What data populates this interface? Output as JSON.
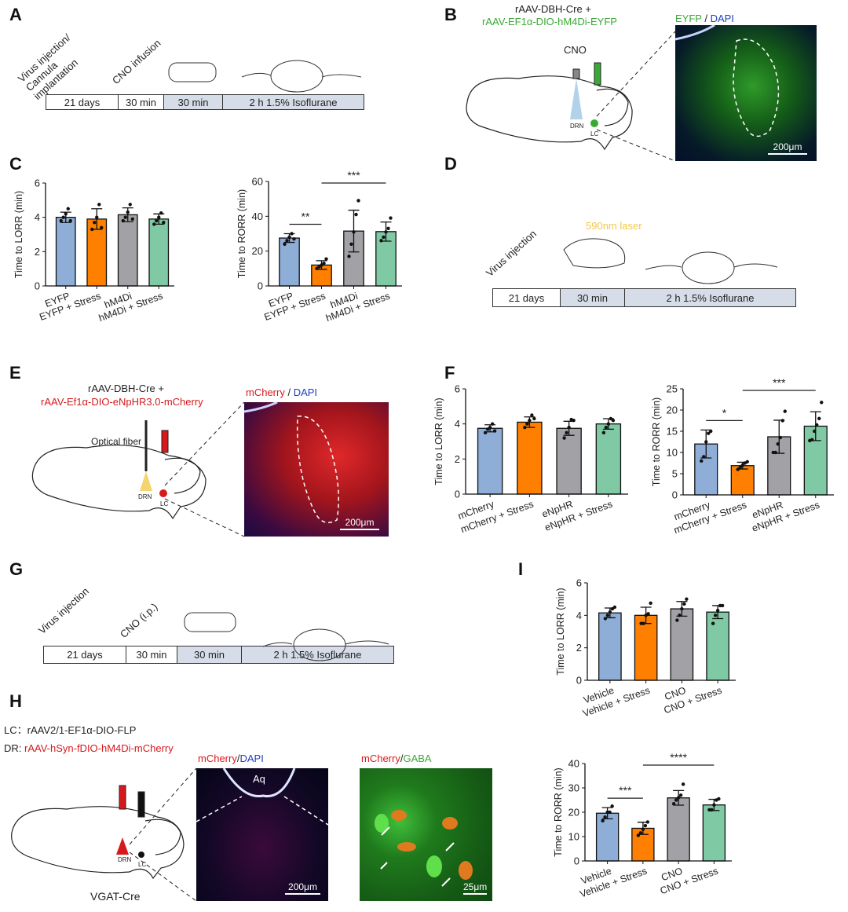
{
  "panels": {
    "A": {
      "letter": "A",
      "labels": [
        "Virus injection/ Cannula implantation",
        "CNO infusion"
      ],
      "timeline": [
        "21 days",
        "30 min",
        "30 min",
        "2 h 1.5% Isoflurane"
      ]
    },
    "B": {
      "letter": "B",
      "virus_line1": "rAAV-DBH-Cre +",
      "virus_line2": "rAAV-EF1α-DIO-hM4Di-EYFP",
      "cno": "CNO",
      "drn": "DRN",
      "lc": "LC",
      "stain_a": "EYFP",
      "stain_sep": " / ",
      "stain_b": "DAPI",
      "scale": "200μm"
    },
    "C": {
      "letter": "C"
    },
    "D": {
      "letter": "D",
      "label": "Virus injection",
      "laser": "590nm laser",
      "timeline": [
        "21 days",
        "30 min",
        "2 h 1.5% Isoflurane"
      ]
    },
    "E": {
      "letter": "E",
      "virus_line1": "rAAV-DBH-Cre +",
      "virus_line2": "rAAV-Ef1α-DIO-eNpHR3.0-mCherry",
      "fiber": "Optical fiber",
      "drn": "DRN",
      "lc": "LC",
      "stain_a": "mCherry",
      "stain_sep": " / ",
      "stain_b": "DAPI",
      "scale": "200μm"
    },
    "F": {
      "letter": "F"
    },
    "G": {
      "letter": "G",
      "labels": [
        "Virus injection",
        "CNO (i.p.)"
      ],
      "timeline": [
        "21 days",
        "30 min",
        "30 min",
        "2 h 1.5% Isoflurane"
      ]
    },
    "H": {
      "letter": "H",
      "lc_label": "LC：",
      "lc_virus": "rAAV2/1-EF1α-DIO-FLP",
      "dr_label": "DR: ",
      "dr_virus": "rAAV-hSyn-fDIO-hM4Di-mCherry",
      "drn": "DRN",
      "lc": "LC",
      "mouse": "VGAT-Cre",
      "stain1_a": "mCherry",
      "stain1_sep": "/",
      "stain1_b": "DAPI",
      "aq": "Aq",
      "scale1": "200μm",
      "stain2_a": "mCherry",
      "stain2_sep": "/",
      "stain2_b": "GABA",
      "scale2": "25μm"
    },
    "I": {
      "letter": "I"
    }
  },
  "colors": {
    "blue": "#8eaed8",
    "orange": "#ff8000",
    "gray": "#a2a2a6",
    "green": "#7fc9a5",
    "virus_green": "#3aa935",
    "virus_red": "#d7191c",
    "dapi_blue": "#1f3fbf",
    "laser_yellow": "#f2c84b"
  },
  "chart_data": [
    {
      "id": "C-left",
      "type": "bar",
      "ylabel": "Time to LORR (min)",
      "ylim": [
        0,
        6
      ],
      "yticks": [
        0,
        2,
        4,
        6
      ],
      "categories": [
        "EYFP",
        "EYFP + Stress",
        "hM4Di",
        "hM4Di  + Stress"
      ],
      "values": [
        4.0,
        3.9,
        4.15,
        3.9
      ],
      "errors": [
        0.3,
        0.6,
        0.4,
        0.3
      ],
      "points": [
        [
          3.8,
          4.0,
          4.2,
          4.5,
          3.8
        ],
        [
          3.3,
          3.7,
          4.0,
          4.75,
          3.4
        ],
        [
          3.8,
          4.0,
          4.3,
          4.75,
          3.9
        ],
        [
          3.6,
          3.8,
          4.0,
          4.25,
          3.7
        ]
      ],
      "significance": []
    },
    {
      "id": "C-right",
      "type": "bar",
      "ylabel": "Time to RORR (min)",
      "ylim": [
        0,
        60
      ],
      "yticks": [
        0,
        20,
        40,
        60
      ],
      "categories": [
        "EYFP",
        "EYFP + Stress",
        "hM4Di",
        "hM4Di + Stress"
      ],
      "values": [
        27.5,
        12,
        31.5,
        31.2
      ],
      "errors": [
        2.5,
        2.5,
        12,
        5.5
      ],
      "points": [
        [
          24,
          26,
          28,
          30,
          27
        ],
        [
          10,
          11,
          12,
          13,
          15.5
        ],
        [
          17,
          24,
          31,
          41,
          49
        ],
        [
          26,
          28,
          31,
          33,
          39
        ]
      ],
      "significance": [
        {
          "from": 0,
          "to": 1,
          "label": "**"
        },
        {
          "from": 1,
          "to": 3,
          "label": "***"
        }
      ]
    },
    {
      "id": "F-left",
      "type": "bar",
      "ylabel": "Time to LORR (min)",
      "ylim": [
        0,
        6
      ],
      "yticks": [
        0,
        2,
        4,
        6
      ],
      "categories": [
        "mCherry",
        "mCherry + Stress",
        "eNpHR",
        "eNpHR + Stress"
      ],
      "values": [
        3.75,
        4.1,
        3.75,
        4.0
      ],
      "errors": [
        0.2,
        0.3,
        0.4,
        0.3
      ],
      "points": [
        [
          3.5,
          3.7,
          3.8,
          4.0,
          3.6
        ],
        [
          3.8,
          4.0,
          4.2,
          4.5,
          4.3
        ],
        [
          3.2,
          3.5,
          3.8,
          4.25,
          4.2
        ],
        [
          3.5,
          3.8,
          4.0,
          4.3,
          4.2
        ]
      ],
      "significance": []
    },
    {
      "id": "F-right",
      "type": "bar",
      "ylabel": "Time to RORR (min)",
      "ylim": [
        0,
        25
      ],
      "yticks": [
        0,
        5,
        10,
        15,
        20,
        25
      ],
      "categories": [
        "mCherry",
        "mCherry + Stress",
        "eNpHR",
        "eNpHR + Stress"
      ],
      "values": [
        12,
        6.9,
        13.7,
        16.2
      ],
      "errors": [
        3.3,
        0.8,
        3.9,
        3.4
      ],
      "points": [
        [
          8,
          9,
          12.5,
          14.5,
          15
        ],
        [
          6,
          6.5,
          7,
          7.5,
          7.8
        ],
        [
          10,
          10,
          12,
          13.5,
          17.5,
          19.7
        ],
        [
          12.8,
          13,
          15,
          16.5,
          18,
          21.8
        ]
      ],
      "significance": [
        {
          "from": 0,
          "to": 1,
          "label": "*"
        },
        {
          "from": 1,
          "to": 3,
          "label": "***"
        }
      ]
    },
    {
      "id": "I",
      "type": "bar",
      "ylabel": "Time to LORR (min)",
      "ylim": [
        0,
        6
      ],
      "yticks": [
        0,
        2,
        4,
        6
      ],
      "categories": [
        "Vehicle",
        "Vehicle + Stress",
        "CNO",
        "CNO + Stress"
      ],
      "values": [
        4.15,
        4.0,
        4.4,
        4.2
      ],
      "errors": [
        0.3,
        0.5,
        0.45,
        0.4
      ],
      "points": [
        [
          3.8,
          4.0,
          4.2,
          4.4,
          4.5
        ],
        [
          3.5,
          3.5,
          4.0,
          4.1,
          4.75
        ],
        [
          3.7,
          4.0,
          4.4,
          4.7,
          5.0
        ],
        [
          3.5,
          4.0,
          4.3,
          4.6,
          4.6
        ]
      ],
      "significance": []
    },
    {
      "id": "H",
      "type": "bar",
      "ylabel": "Time to RORR (min)",
      "ylim": [
        0,
        40
      ],
      "yticks": [
        0,
        10,
        20,
        30,
        40
      ],
      "categories": [
        "Vehicle",
        "Vehicle + Stress",
        "CNO",
        "CNO + Stress"
      ],
      "values": [
        19.6,
        13.4,
        25.9,
        23
      ],
      "errors": [
        2.3,
        2.5,
        3,
        2.3
      ],
      "points": [
        [
          16.5,
          18,
          20,
          20,
          22.5
        ],
        [
          10.5,
          11.5,
          13,
          14.5,
          16
        ],
        [
          23.5,
          25,
          26,
          27,
          31.5
        ],
        [
          21,
          21,
          23,
          25,
          25.5
        ]
      ],
      "significance": [
        {
          "from": 0,
          "to": 1,
          "label": "***"
        },
        {
          "from": 1,
          "to": 3,
          "label": "****"
        }
      ]
    }
  ]
}
